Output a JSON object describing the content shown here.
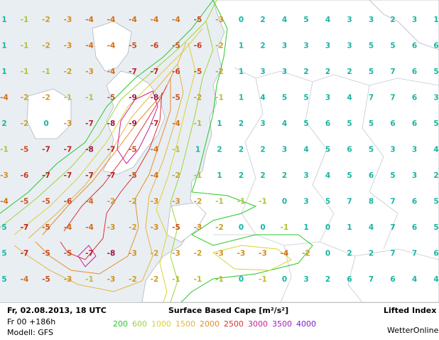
{
  "title": "Surface Based Cape [m²/s²]",
  "index_title": "Lifted Index",
  "date": "Fr, 02.08.2013, 18 UTC",
  "run": "Fr 00 +186h",
  "model": "Modell: GFS",
  "brand": "WetterOnline",
  "legend": [
    {
      "label": "200",
      "color": "#28c828"
    },
    {
      "label": "600",
      "color": "#a0d23c"
    },
    {
      "label": "1000",
      "color": "#dcd232"
    },
    {
      "label": "1500",
      "color": "#e6b43c"
    },
    {
      "label": "2000",
      "color": "#e68c28"
    },
    {
      "label": "2500",
      "color": "#dc3232"
    },
    {
      "label": "3000",
      "color": "#c81e96"
    },
    {
      "label": "3500",
      "color": "#a01eb4"
    },
    {
      "label": "4000",
      "color": "#7a1ec8"
    }
  ],
  "li_grid": [
    [
      "1",
      "-1",
      "-2",
      "-3",
      "-4",
      "-4",
      "-4",
      "-4",
      "-4",
      "-5",
      "-3",
      "0",
      "2",
      "4",
      "5",
      "4",
      "3",
      "3",
      "2",
      "3",
      "1"
    ],
    [
      "1",
      "-1",
      "-2",
      "-3",
      "-4",
      "-4",
      "-5",
      "-6",
      "-5",
      "-6",
      "-2",
      "1",
      "2",
      "3",
      "3",
      "3",
      "3",
      "5",
      "5",
      "6",
      "6"
    ],
    [
      "1",
      "-1",
      "-1",
      "-2",
      "-3",
      "-4",
      "-7",
      "-7",
      "-6",
      "-5",
      "-2",
      "1",
      "3",
      "3",
      "2",
      "2",
      "2",
      "5",
      "7",
      "6",
      "5"
    ],
    [
      "-4",
      "-2",
      "-2",
      "-1",
      "-1",
      "-5",
      "-9",
      "-8",
      "-5",
      "-2",
      "-1",
      "1",
      "4",
      "5",
      "5",
      "3",
      "4",
      "7",
      "7",
      "6",
      "3"
    ],
    [
      "2",
      "-2",
      "0",
      "-3",
      "-7",
      "-8",
      "-9",
      "-7",
      "-4",
      "-1",
      "1",
      "2",
      "3",
      "4",
      "5",
      "6",
      "5",
      "5",
      "6",
      "6",
      "5"
    ],
    [
      "-1",
      "-5",
      "-7",
      "-7",
      "-8",
      "-7",
      "-5",
      "-4",
      "-1",
      "1",
      "2",
      "2",
      "2",
      "3",
      "4",
      "5",
      "6",
      "5",
      "3",
      "3",
      "4"
    ],
    [
      "-3",
      "-6",
      "-7",
      "-7",
      "-7",
      "-7",
      "-5",
      "-4",
      "-2",
      "-1",
      "1",
      "2",
      "2",
      "2",
      "3",
      "4",
      "5",
      "6",
      "5",
      "3",
      "2"
    ],
    [
      "-4",
      "-5",
      "-5",
      "-6",
      "-4",
      "-2",
      "-2",
      "-3",
      "-3",
      "-2",
      "-1",
      "-1",
      "-1",
      "0",
      "3",
      "5",
      "7",
      "8",
      "7",
      "6",
      "5"
    ],
    [
      "5",
      "-7",
      "-5",
      "-4",
      "-4",
      "-3",
      "-2",
      "-3",
      "-5",
      "-3",
      "-2",
      "0",
      "0",
      "-1",
      "1",
      "0",
      "1",
      "4",
      "7",
      "6",
      "5"
    ],
    [
      "5",
      "-7",
      "-5",
      "-5",
      "-7",
      "-8",
      "-3",
      "-2",
      "-3",
      "-2",
      "-3",
      "-3",
      "-3",
      "-4",
      "-2",
      "0",
      "2",
      "2",
      "7",
      "7",
      "6"
    ],
    [
      "5",
      "-4",
      "-5",
      "-3",
      "-1",
      "-3",
      "-2",
      "-2",
      "-1",
      "-1",
      "-1",
      "0",
      "-1",
      "0",
      "3",
      "2",
      "6",
      "7",
      "6",
      "4",
      "4"
    ]
  ]
}
